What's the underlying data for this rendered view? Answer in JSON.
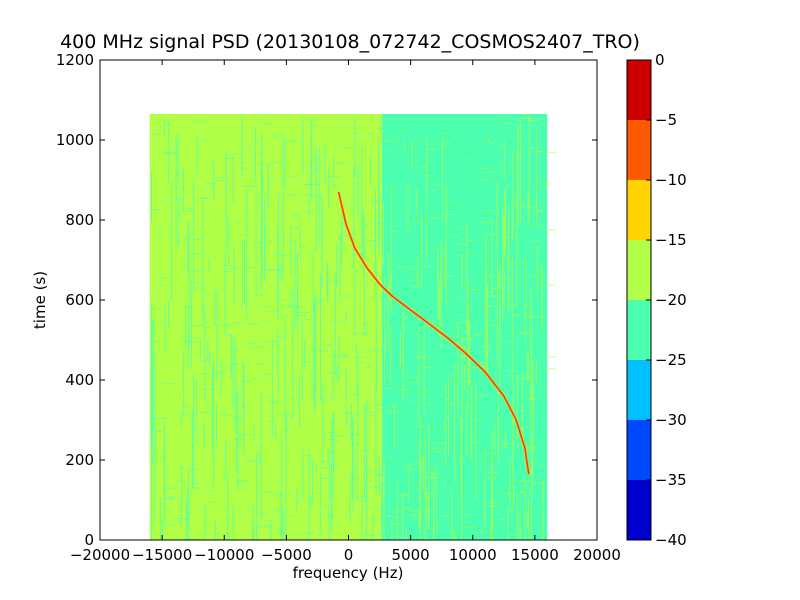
{
  "chart_data": {
    "type": "heatmap",
    "title": "400 MHz signal PSD (20130108_072742_COSMOS2407_TRO)",
    "xlabel": "frequency (Hz)",
    "ylabel": "time (s)",
    "xlim": [
      -20000,
      20000
    ],
    "ylim": [
      0,
      1200
    ],
    "x_ticks": [
      -20000,
      -15000,
      -10000,
      -5000,
      0,
      5000,
      10000,
      15000,
      20000
    ],
    "x_tick_labels": [
      "−20000",
      "−15000",
      "−10000",
      "−5000",
      "0",
      "5000",
      "10000",
      "15000",
      "20000"
    ],
    "y_ticks": [
      0,
      200,
      400,
      600,
      800,
      1000,
      1200
    ],
    "y_tick_labels": [
      "0",
      "200",
      "400",
      "600",
      "800",
      "1000",
      "1200"
    ],
    "data_extent": {
      "x": [
        -16000,
        16000
      ],
      "y": [
        0,
        1065
      ]
    },
    "regions": [
      {
        "x": [
          -16000,
          2700
        ],
        "level": "-20 to -15",
        "color": "#b2ff48"
      },
      {
        "x": [
          2700,
          16000
        ],
        "level": "-25 to -20",
        "color": "#4bffaf"
      }
    ],
    "signal_trace": {
      "level": "-5 to 0",
      "color": "#e84020",
      "points": [
        [
          -800,
          870
        ],
        [
          -200,
          790
        ],
        [
          500,
          730
        ],
        [
          1500,
          680
        ],
        [
          2500,
          640
        ],
        [
          3500,
          610
        ],
        [
          5000,
          575
        ],
        [
          6500,
          540
        ],
        [
          8000,
          505
        ],
        [
          9500,
          465
        ],
        [
          11000,
          420
        ],
        [
          12500,
          360
        ],
        [
          13500,
          300
        ],
        [
          14200,
          230
        ],
        [
          14500,
          165
        ]
      ]
    },
    "colorbar": {
      "range": [
        -40,
        0
      ],
      "tick_labels": [
        "0",
        "−5",
        "−10",
        "−15",
        "−20",
        "−25",
        "−30",
        "−35",
        "−40"
      ],
      "bands": [
        {
          "from": -40,
          "to": -35,
          "color": "#0000cd"
        },
        {
          "from": -35,
          "to": -30,
          "color": "#0048ff"
        },
        {
          "from": -30,
          "to": -25,
          "color": "#00c0ff"
        },
        {
          "from": -25,
          "to": -20,
          "color": "#4bffaf"
        },
        {
          "from": -20,
          "to": -15,
          "color": "#b2ff48"
        },
        {
          "from": -15,
          "to": -10,
          "color": "#ffd400"
        },
        {
          "from": -10,
          "to": -5,
          "color": "#ff5900"
        },
        {
          "from": -5,
          "to": 0,
          "color": "#cd0000"
        }
      ]
    }
  }
}
